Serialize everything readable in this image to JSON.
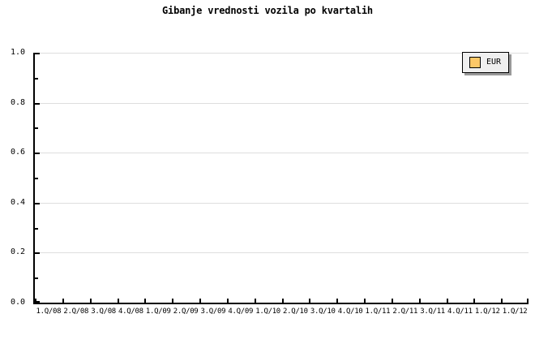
{
  "title": "Gibanje vrednosti vozila po kvartalih",
  "legend": {
    "position": "top-right",
    "items": [
      {
        "label": "EUR",
        "swatch_color": "#FCC868",
        "swatch_icon": "series-swatch-icon"
      }
    ]
  },
  "colors": {
    "background": "#ffffff",
    "plot_background": "#ffffff",
    "axis": "#000000",
    "grid": "#dedede",
    "text": "#000000",
    "legend_background": "#efefef",
    "legend_border": "#000000",
    "legend_shadow": "#999999",
    "series_eur": "#FCC868"
  },
  "chart_data": {
    "type": "line",
    "title": "Gibanje vrednosti vozila po kvartalih",
    "xlabel": "",
    "ylabel": "",
    "categories": [
      "1.Q/08",
      "2.Q/08",
      "3.Q/08",
      "4.Q/08",
      "1.Q/09",
      "2.Q/09",
      "3.Q/09",
      "4.Q/09",
      "1.Q/10",
      "2.Q/10",
      "3.Q/10",
      "4.Q/10",
      "1.Q/11",
      "2.Q/11",
      "3.Q/11",
      "4.Q/11",
      "1.Q/12",
      "1.Q/12"
    ],
    "series": [
      {
        "name": "EUR",
        "color": "#FCC868",
        "values": []
      }
    ],
    "ylim": [
      0.0,
      1.0
    ],
    "y_tick_values": [
      1.0,
      0.8,
      0.6,
      0.4,
      0.2,
      0.0
    ],
    "y_tick_labels": [
      "1.0",
      "0.8",
      "0.6",
      "0.4",
      "0.2",
      "0.0"
    ],
    "y_minor_tick_values": [
      0.9,
      0.7,
      0.5,
      0.3,
      0.1
    ],
    "grid": true,
    "gridline_values": [
      1.0,
      0.8,
      0.6,
      0.4,
      0.2
    ],
    "legend_position": "top-right"
  }
}
